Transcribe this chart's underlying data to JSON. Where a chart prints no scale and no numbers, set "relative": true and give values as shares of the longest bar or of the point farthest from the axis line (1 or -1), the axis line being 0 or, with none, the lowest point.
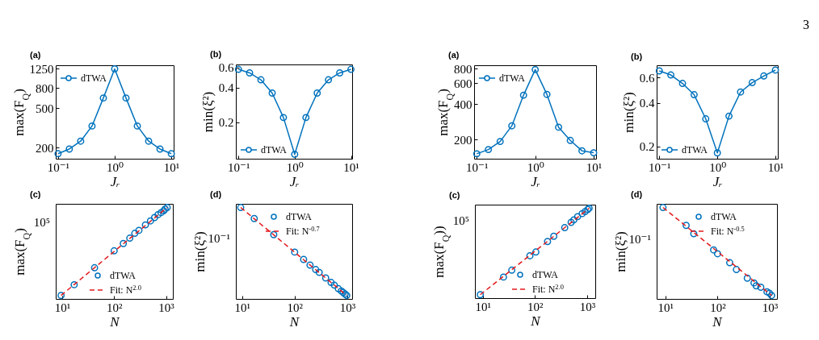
{
  "chart_data": [
    {
      "type": "line",
      "title": "(a)",
      "xlabel": "Jᵣ",
      "ylabel": "max(F$_{Q}$)",
      "x": [
        0.1,
        0.158,
        0.251,
        0.398,
        0.631,
        1,
        1.585,
        2.512,
        3.981,
        6.31,
        10
      ],
      "series": [
        {
          "name": "dTWA",
          "color": "#0072bd",
          "values": [
            173,
            193,
            232,
            330,
            634,
            1250,
            634,
            330,
            232,
            193,
            173
          ]
        }
      ],
      "log": "xy",
      "xlim": [
        0.091,
        11
      ],
      "ylim": [
        154,
        1360
      ],
      "xticks": [
        {
          "value": 0.1,
          "label": "10⁻¹"
        },
        {
          "value": 1,
          "label": "10⁰"
        },
        {
          "value": 10,
          "label": "10¹"
        }
      ],
      "yticks": [
        200,
        500,
        800,
        1250
      ],
      "legend": "top left",
      "marker": "circle",
      "line_style": "solid"
    },
    {
      "type": "line",
      "title": "(b)",
      "xlabel": "Jᵣ",
      "ylabel": "min(ξ²)",
      "x": [
        0.1,
        0.158,
        0.251,
        0.398,
        0.631,
        1,
        1.585,
        2.512,
        3.981,
        6.31,
        10
      ],
      "series": [
        {
          "name": "dTWA",
          "color": "#0072bd",
          "values": [
            0.58,
            0.54,
            0.47,
            0.36,
            0.22,
            0.105,
            0.22,
            0.36,
            0.47,
            0.54,
            0.58
          ]
        }
      ],
      "log": "xy",
      "xlim": [
        0.09,
        10.5
      ],
      "ylim": [
        0.096,
        0.64
      ],
      "xticks": [
        {
          "value": 0.1,
          "label": "10⁻¹"
        },
        {
          "value": 1,
          "label": "10⁰"
        },
        {
          "value": 10,
          "label": "10¹"
        }
      ],
      "yticks": [
        0.2,
        0.4,
        0.6
      ],
      "legend": "bottom left",
      "marker": "circle",
      "line_style": "solid"
    },
    {
      "type": "line",
      "title": "(a)",
      "xlabel": "Jᵣ",
      "ylabel": "max(F$_{Q}$)",
      "x": [
        0.1,
        0.158,
        0.251,
        0.398,
        0.631,
        1,
        1.585,
        2.512,
        3.981,
        6.31,
        10
      ],
      "series": [
        {
          "name": "dTWA",
          "color": "#0072bd",
          "values": [
            151,
            164,
            192,
            261,
            476,
            785,
            483,
            254,
            196,
            160,
            154
          ]
        }
      ],
      "log": "xy",
      "xlim": [
        0.09,
        11
      ],
      "ylim": [
        137,
        855
      ],
      "xticks": [
        {
          "value": 0.1,
          "label": "10⁻¹"
        },
        {
          "value": 1,
          "label": "10⁰"
        },
        {
          "value": 10,
          "label": "10¹"
        }
      ],
      "yticks": [
        200,
        400,
        600,
        800
      ],
      "legend": "top left",
      "marker": "circle",
      "line_style": "solid"
    },
    {
      "type": "line",
      "title": "(b)",
      "xlabel": "Jᵣ",
      "ylabel": "min(ξ²)",
      "x": [
        0.1,
        0.158,
        0.251,
        0.398,
        0.631,
        1,
        1.585,
        2.512,
        3.981,
        6.31,
        10
      ],
      "series": [
        {
          "name": "dTWA",
          "color": "#0072bd",
          "values": [
            0.667,
            0.625,
            0.546,
            0.456,
            0.31,
            0.18,
            0.324,
            0.476,
            0.553,
            0.615,
            0.676
          ]
        }
      ],
      "log": "xy",
      "xlim": [
        0.09,
        11
      ],
      "ylim": [
        0.164,
        0.73
      ],
      "xticks": [
        {
          "value": 0.1,
          "label": "10⁻¹"
        },
        {
          "value": 1,
          "label": "10⁰"
        },
        {
          "value": 10,
          "label": "10¹"
        }
      ],
      "yticks": [
        0.2,
        0.4,
        0.6
      ],
      "legend": "bottom left",
      "marker": "circle",
      "line_style": "solid",
      "annotations": [
        "3"
      ]
    },
    {
      "type": "scatter",
      "title": "(c)",
      "xlabel": "N",
      "ylabel": "max(F$_{Q}$)",
      "relative": true,
      "series": [
        {
          "name": "dTWA",
          "color": "#0072bd",
          "x": [
            9.5,
            17,
            42,
            100,
            150,
            200,
            250,
            300,
            400,
            500,
            600,
            700,
            800,
            900,
            960,
            1050
          ],
          "values": [
            0.038,
            0.155,
            0.341,
            0.526,
            0.606,
            0.665,
            0.718,
            0.75,
            0.81,
            0.853,
            0.89,
            0.922,
            0.944,
            0.964,
            0.983,
            1
          ]
        },
        {
          "name": "Fit: N$^{2.0}$",
          "type": "line",
          "color": "#e3191c",
          "x": [
            9.5,
            1050
          ],
          "values": [
            0.038,
            1
          ],
          "marker": "none",
          "line_style": "dashed"
        }
      ],
      "log": "x",
      "xlim": [
        7.5,
        1350
      ],
      "xticks": [
        {
          "value": 10,
          "label": "10¹"
        },
        {
          "value": 100,
          "label": "10²"
        },
        {
          "value": 1000,
          "label": "10³"
        }
      ],
      "legend": "bottom right",
      "marker": "circle",
      "annotations": [
        "10⁵"
      ]
    },
    {
      "type": "scatter",
      "title": "(d)",
      "xlabel": "N",
      "ylabel": "min(ξ²)",
      "relative": true,
      "series": [
        {
          "name": "dTWA",
          "color": "#0072bd",
          "x": [
            9.4,
            17,
            40,
            100,
            148,
            196,
            251,
            293,
            389,
            492,
            567,
            677,
            771,
            838,
            910,
            977
          ],
          "values": [
            1,
            0.879,
            0.703,
            0.512,
            0.432,
            0.37,
            0.321,
            0.29,
            0.229,
            0.18,
            0.151,
            0.112,
            0.087,
            0.07,
            0.053,
            0.038
          ]
        },
        {
          "name": "Fit: N$^{-0.7}$",
          "type": "line",
          "color": "#e3191c",
          "x": [
            9.4,
            977
          ],
          "values": [
            1,
            0.038
          ],
          "marker": "none",
          "line_style": "dashed"
        }
      ],
      "log": "x",
      "xlim": [
        7.6,
        1240
      ],
      "xticks": [
        {
          "value": 10,
          "label": "10¹"
        },
        {
          "value": 100,
          "label": "10²"
        },
        {
          "value": 1000,
          "label": "10³"
        }
      ],
      "legend": "top right",
      "marker": "circle",
      "annotations": [
        "10⁻¹"
      ]
    },
    {
      "type": "scatter",
      "title": "(c)",
      "xlabel": "N",
      "ylabel": "max(F$_{Q}$))",
      "relative": true,
      "series": [
        {
          "name": "dTWA",
          "color": "#0072bd",
          "x": [
            9,
            25,
            36,
            80,
            104,
            174,
            229,
            371,
            492,
            554,
            654,
            800,
            910,
            1024,
            1087
          ],
          "values": [
            0.038,
            0.234,
            0.311,
            0.471,
            0.513,
            0.63,
            0.688,
            0.784,
            0.843,
            0.871,
            0.907,
            0.94,
            0.963,
            0.986,
            1
          ]
        },
        {
          "name": "Fit: N$^{2.0}$",
          "type": "line",
          "color": "#e3191c",
          "x": [
            9,
            1087
          ],
          "values": [
            0.038,
            1
          ],
          "marker": "none",
          "line_style": "dashed"
        }
      ],
      "log": "x",
      "xlim": [
        7.1,
        1425
      ],
      "xticks": [
        {
          "value": 10,
          "label": "10¹"
        },
        {
          "value": 100,
          "label": "10²"
        },
        {
          "value": 1000,
          "label": "10³"
        }
      ],
      "legend": "bottom right",
      "marker": "circle",
      "annotations": [
        "10⁵"
      ]
    },
    {
      "type": "scatter",
      "title": "(d)",
      "xlabel": "N",
      "ylabel": "min(ξ²)",
      "relative": true,
      "series": [
        {
          "name": "dTWA",
          "color": "#0072bd",
          "x": [
            9,
            25,
            35,
            84,
            100,
            171,
            230,
            372,
            500,
            551,
            675,
            887,
            988,
            1087
          ],
          "values": [
            1,
            0.804,
            0.713,
            0.536,
            0.494,
            0.396,
            0.321,
            0.227,
            0.175,
            0.143,
            0.128,
            0.078,
            0.063,
            0.038
          ]
        },
        {
          "name": "Fit: N$^{-0.5}$",
          "type": "line",
          "color": "#e3191c",
          "x": [
            9,
            1087
          ],
          "values": [
            1,
            0.038
          ],
          "marker": "none",
          "line_style": "dashed"
        }
      ],
      "log": "x",
      "xlim": [
        6.8,
        1380
      ],
      "xticks": [
        {
          "value": 10,
          "label": "10¹"
        },
        {
          "value": 100,
          "label": "10²"
        },
        {
          "value": 1000,
          "label": "10³"
        }
      ],
      "legend": "top right",
      "marker": "circle",
      "annotations": [
        "10⁻¹"
      ]
    }
  ]
}
